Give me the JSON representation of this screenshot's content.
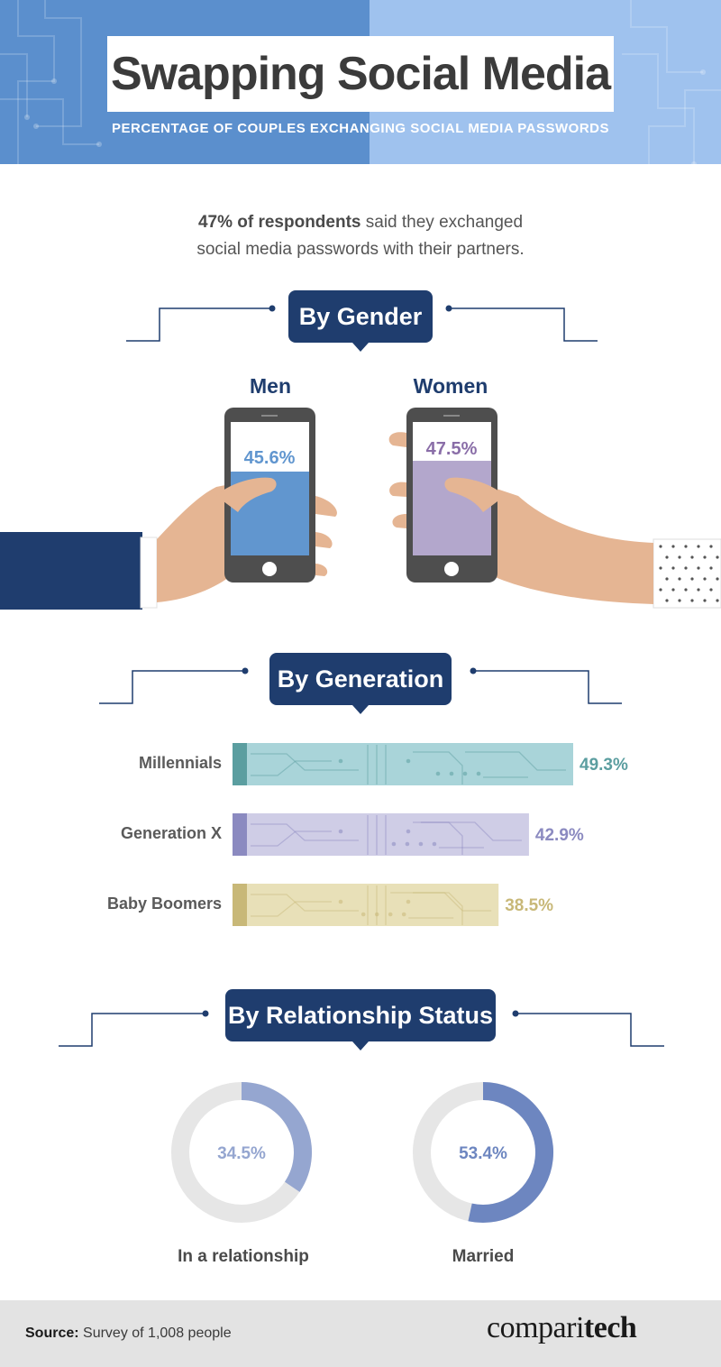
{
  "header": {
    "title": "Swapping Social Media",
    "subtitle": "PERCENTAGE OF COUPLES EXCHANGING SOCIAL MEDIA PASSWORDS"
  },
  "intro": {
    "bold": "47% of respondents",
    "line1_rest": " said they exchanged",
    "line2": "social media passwords with their partners."
  },
  "sections": {
    "gender": "By Gender",
    "generation": "By Generation",
    "relationship": "By Relationship Status"
  },
  "colors": {
    "navy": "#1f3d6e",
    "men": "#6196cf",
    "women": "#b3a7cc",
    "millennials": "#5b9ea0",
    "millennials_bar": "#a9d4d9",
    "genx": "#8b8ac0",
    "genx_bar": "#cfcde6",
    "boomers": "#c8b878",
    "boomers_bar": "#e8e0b8",
    "donut_relationship": "#95a6d0",
    "donut_married": "#6d86c0",
    "donut_track": "#e6e6e6"
  },
  "footer": {
    "source_label": "Source:",
    "source_text": " Survey of 1,008 people",
    "brand_regular": "compari",
    "brand_bold": "tech"
  },
  "chart_data": [
    {
      "type": "bar",
      "title": "By Gender",
      "categories": [
        "Men",
        "Women"
      ],
      "values": [
        45.6,
        47.5
      ],
      "labels": [
        "45.6%",
        "47.5%"
      ],
      "ylim": [
        0,
        100
      ]
    },
    {
      "type": "bar",
      "orientation": "horizontal",
      "title": "By Generation",
      "categories": [
        "Millennials",
        "Generation X",
        "Baby Boomers"
      ],
      "values": [
        49.3,
        42.9,
        38.5
      ],
      "labels": [
        "49.3%",
        "42.9%",
        "38.5%"
      ]
    },
    {
      "type": "pie",
      "title": "By Relationship Status",
      "categories": [
        "In a relationship",
        "Married"
      ],
      "values": [
        34.5,
        53.4
      ],
      "labels": [
        "34.5%",
        "53.4%"
      ]
    }
  ]
}
